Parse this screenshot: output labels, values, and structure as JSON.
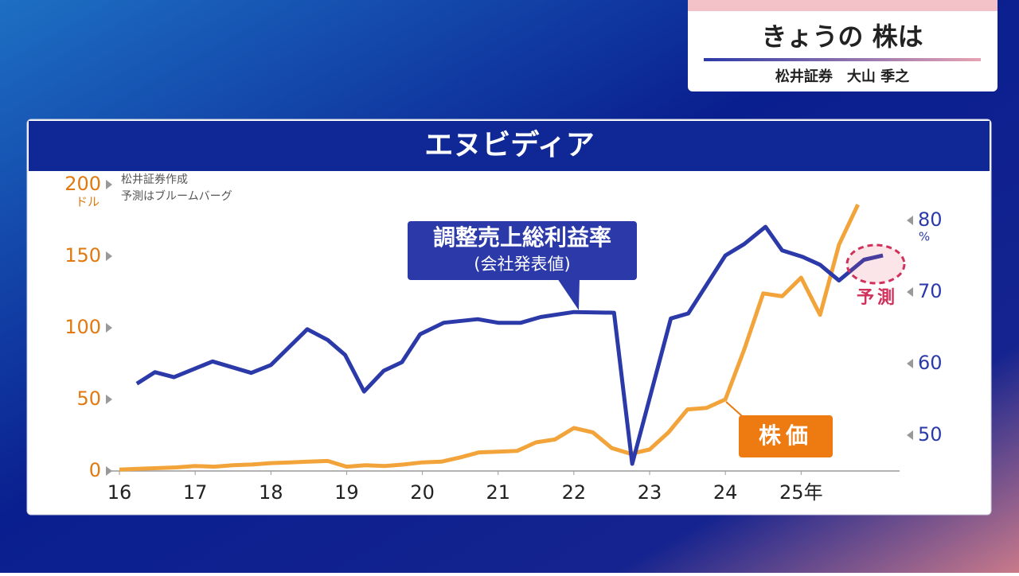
{
  "header": {
    "title": "きょうの 株は",
    "subtitle": "松井証券　大山 季之"
  },
  "chart_data": {
    "type": "line",
    "title": "エヌビディア",
    "source": [
      "松井証券作成",
      "予測はブルームバーグ"
    ],
    "xlim": [
      16,
      26.3
    ],
    "xticks": [
      16,
      17,
      18,
      19,
      20,
      21,
      22,
      23,
      24,
      {
        "value": 25,
        "label": "25年"
      }
    ],
    "ylim": [
      0,
      200
    ],
    "yticks": [
      0,
      50,
      100,
      150,
      200
    ],
    "y_unit": "ドル",
    "y2lim": [
      45,
      85
    ],
    "y2ticks": [
      50,
      60,
      70,
      80
    ],
    "y2_unit": "%",
    "grid": false,
    "series": [
      {
        "name": "株価",
        "color": "#f2a33a",
        "axis": "y",
        "x": [
          16,
          16.25,
          16.5,
          16.75,
          17,
          17.25,
          17.5,
          17.75,
          18,
          18.25,
          18.5,
          18.75,
          19,
          19.25,
          19.5,
          19.75,
          20,
          20.25,
          20.5,
          20.75,
          21,
          21.25,
          21.5,
          21.75,
          22,
          22.25,
          22.5,
          22.75,
          23,
          23.25,
          23.5,
          23.75,
          24,
          24.25,
          24.5,
          24.75,
          25,
          25.25,
          25.5,
          25.75
        ],
        "values": [
          1,
          1.5,
          2,
          2.5,
          3.5,
          3,
          4,
          4.5,
          5.5,
          6,
          6.5,
          7,
          3,
          4,
          3.5,
          4.5,
          6,
          6.5,
          9.5,
          13,
          13.5,
          14,
          20,
          22,
          30,
          27,
          16,
          12,
          15,
          27,
          43,
          44,
          50,
          85,
          124,
          122,
          135,
          109,
          158,
          186
        ]
      },
      {
        "name": "調整売上総利益率",
        "note": "(会社発表値)",
        "color": "#2b3aa8",
        "axis": "y2",
        "x": [
          16.23,
          16.47,
          16.72,
          17.23,
          17.74,
          18,
          18.48,
          18.75,
          18.98,
          19.23,
          19.49,
          19.73,
          19.97,
          20.28,
          20.73,
          21,
          21.3,
          21.56,
          22,
          22.53,
          22.77,
          23.28,
          23.51,
          24,
          24.25,
          24.53,
          24.75,
          25.02,
          25.25,
          25.5,
          25.83,
          26.08
        ],
        "values": [
          57.2,
          58.8,
          58.1,
          60.3,
          58.7,
          59.8,
          64.8,
          63.3,
          61.2,
          56.1,
          59,
          60.2,
          64.1,
          65.7,
          66.2,
          65.7,
          65.7,
          66.5,
          67.2,
          67.1,
          46,
          66.3,
          67,
          75.1,
          76.7,
          79.1,
          75.8,
          74.9,
          73.8,
          71.6,
          74.5,
          75.1
        ]
      }
    ],
    "forecast_label": "予測"
  }
}
